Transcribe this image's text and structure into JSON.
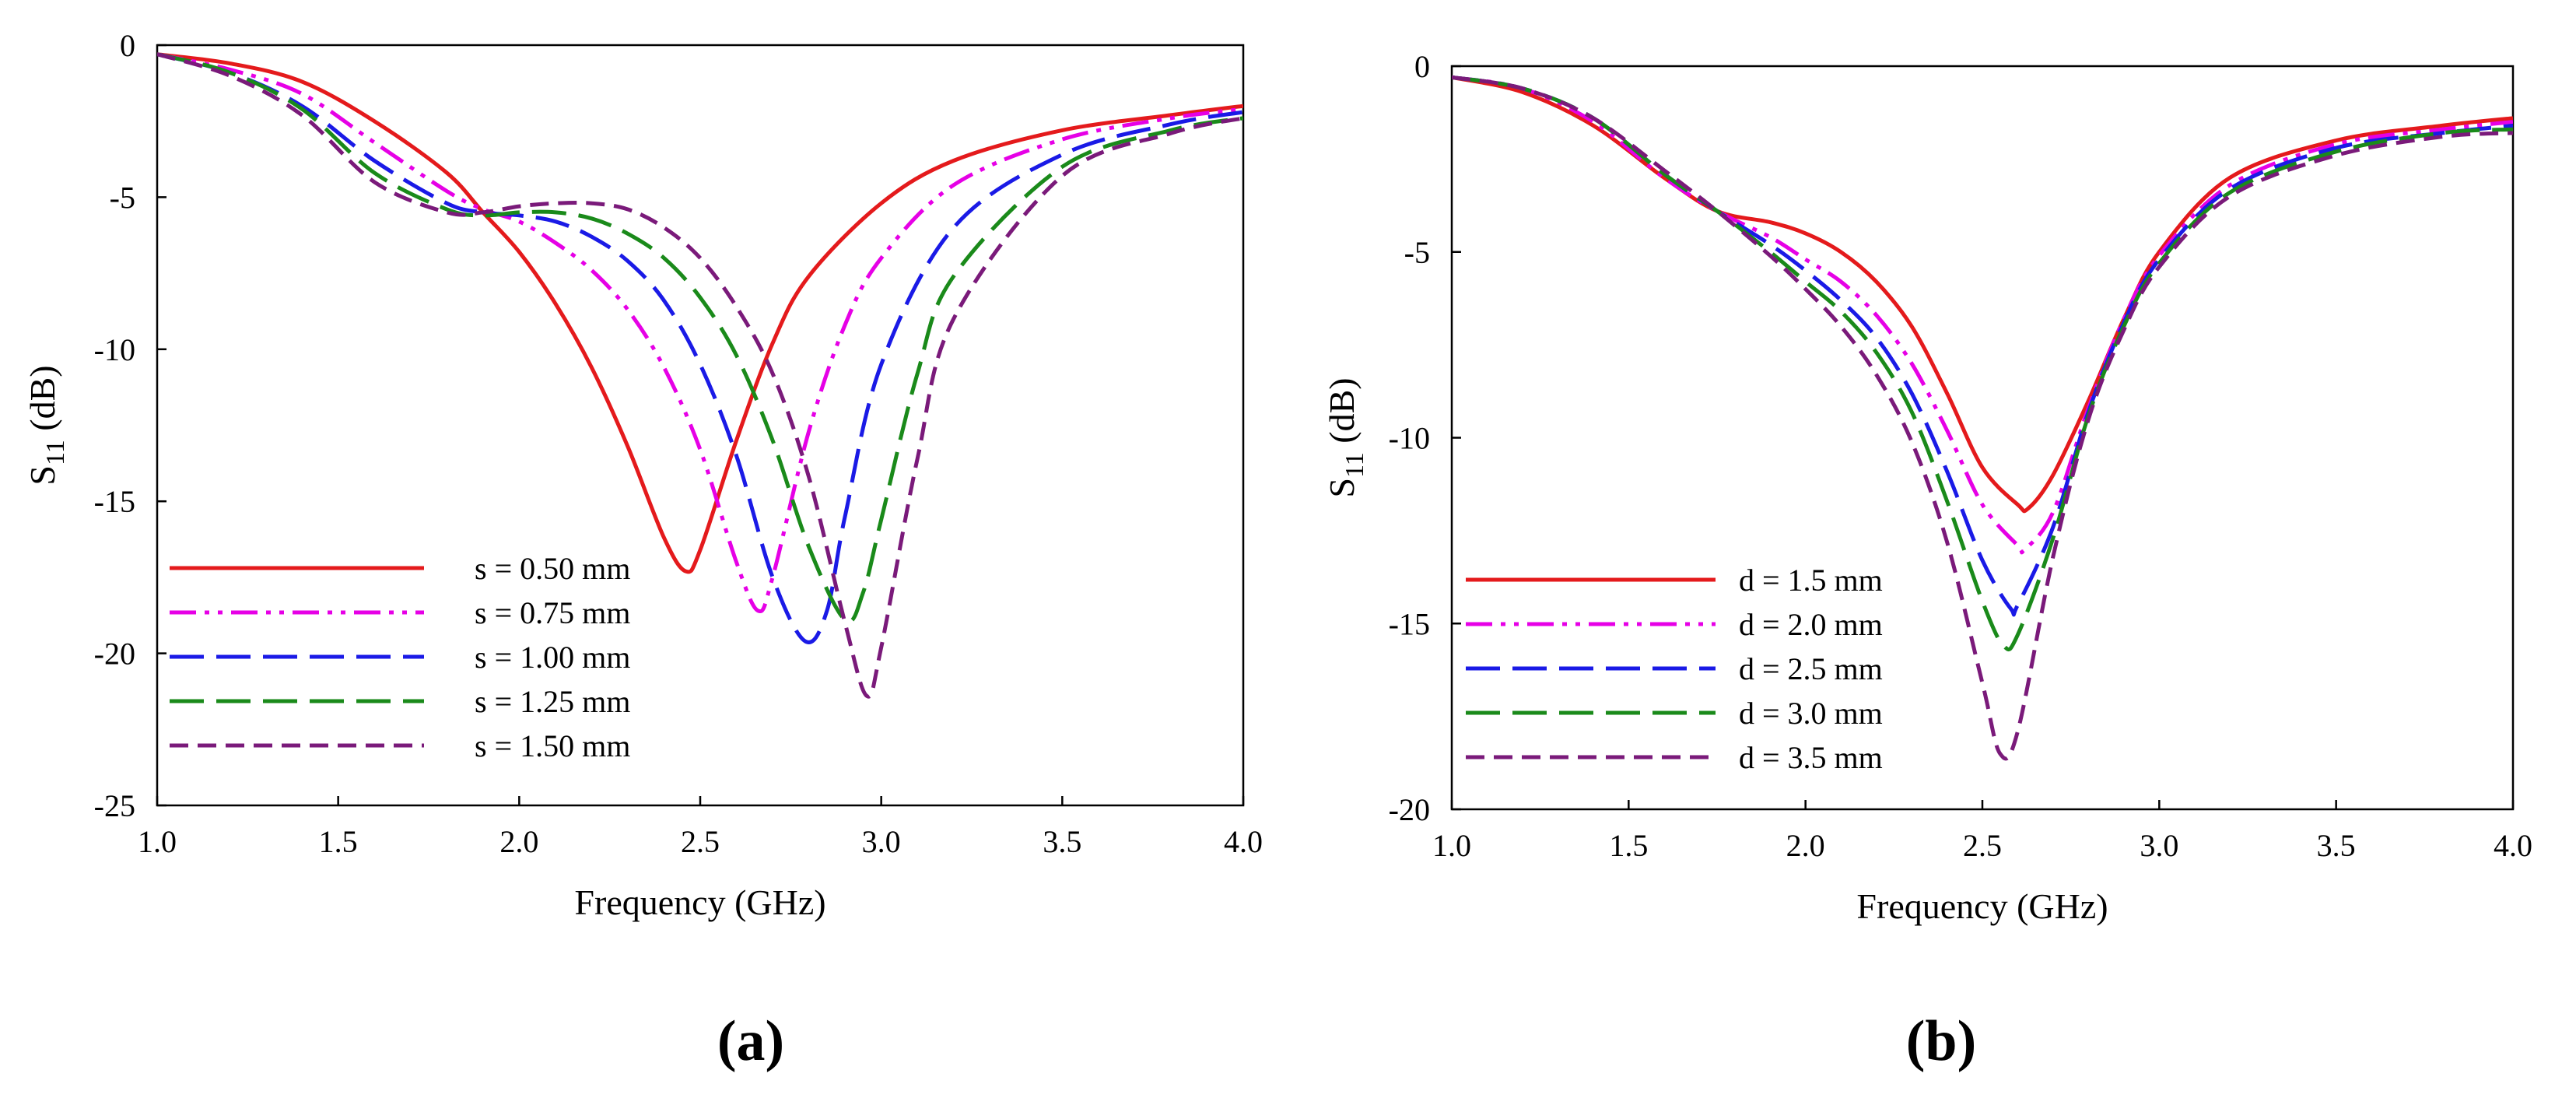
{
  "chart_data": [
    {
      "type": "line",
      "panel_label": "(a)",
      "xlabel": "Frequency (GHz)",
      "ylabel_main": "S",
      "ylabel_sub": "11",
      "ylabel_unit": " (dB)",
      "xlim": [
        1.0,
        4.0
      ],
      "ylim": [
        -25,
        0
      ],
      "xticks": [
        "1.0",
        "1.5",
        "2.0",
        "2.5",
        "3.0",
        "3.5",
        "4.0"
      ],
      "yticks": [
        "0",
        "-5",
        "-10",
        "-15",
        "-20",
        "-25"
      ],
      "xtick_values": [
        1.0,
        1.5,
        2.0,
        2.5,
        3.0,
        3.5,
        4.0
      ],
      "ytick_values": [
        0,
        -5,
        -10,
        -15,
        -20,
        -25
      ],
      "legend_position": "lower-left",
      "series": [
        {
          "name": "s = 0.50 mm",
          "color": "#e41a1c",
          "dash": "solid",
          "x": [
            1.0,
            1.2,
            1.4,
            1.6,
            1.8,
            1.9,
            2.0,
            2.1,
            2.2,
            2.3,
            2.4,
            2.46,
            2.5,
            2.6,
            2.7,
            2.8,
            3.0,
            3.2,
            3.5,
            3.8,
            4.0
          ],
          "y": [
            -0.3,
            -0.6,
            -1.2,
            -2.5,
            -4.2,
            -5.5,
            -6.8,
            -8.5,
            -10.6,
            -13.2,
            -16.2,
            -17.3,
            -16.6,
            -13.0,
            -9.8,
            -7.6,
            -5.2,
            -3.8,
            -2.8,
            -2.3,
            -2.0
          ]
        },
        {
          "name": "s = 0.75 mm",
          "color": "#e600e6",
          "dash": "dashdotdot",
          "x": [
            1.0,
            1.2,
            1.4,
            1.6,
            1.8,
            1.9,
            2.0,
            2.1,
            2.2,
            2.3,
            2.4,
            2.5,
            2.6,
            2.66,
            2.7,
            2.8,
            2.9,
            3.0,
            3.2,
            3.5,
            3.8,
            4.0
          ],
          "y": [
            -0.3,
            -0.8,
            -1.6,
            -3.2,
            -4.8,
            -5.4,
            -5.8,
            -6.5,
            -7.4,
            -8.7,
            -10.6,
            -13.3,
            -17.0,
            -18.6,
            -17.5,
            -12.7,
            -9.2,
            -7.0,
            -4.6,
            -3.1,
            -2.4,
            -2.1
          ]
        },
        {
          "name": "s = 1.00 mm",
          "color": "#1a1ae6",
          "dash": "longdash",
          "x": [
            1.0,
            1.2,
            1.4,
            1.6,
            1.8,
            1.9,
            2.0,
            2.1,
            2.2,
            2.3,
            2.4,
            2.5,
            2.6,
            2.7,
            2.79,
            2.85,
            2.9,
            3.0,
            3.2,
            3.5,
            3.8,
            4.0
          ],
          "y": [
            -0.3,
            -0.9,
            -2.0,
            -3.8,
            -5.2,
            -5.5,
            -5.6,
            -5.8,
            -6.3,
            -7.1,
            -8.4,
            -10.5,
            -13.5,
            -17.5,
            -19.6,
            -18.6,
            -15.5,
            -10.5,
            -6.0,
            -3.6,
            -2.6,
            -2.2
          ]
        },
        {
          "name": "s = 1.25 mm",
          "color": "#1a8a1a",
          "dash": "longdash",
          "x": [
            1.0,
            1.2,
            1.4,
            1.6,
            1.8,
            1.9,
            2.0,
            2.1,
            2.2,
            2.3,
            2.4,
            2.5,
            2.6,
            2.7,
            2.8,
            2.9,
            2.95,
            3.0,
            3.1,
            3.2,
            3.5,
            3.8,
            4.0
          ],
          "y": [
            -0.3,
            -0.9,
            -2.1,
            -4.2,
            -5.4,
            -5.6,
            -5.5,
            -5.5,
            -5.7,
            -6.2,
            -7.0,
            -8.3,
            -10.2,
            -13.0,
            -16.5,
            -18.9,
            -18.0,
            -15.6,
            -10.8,
            -7.6,
            -4.0,
            -2.8,
            -2.4
          ]
        },
        {
          "name": "s = 1.50 mm",
          "color": "#7a1a7a",
          "dash": "dash",
          "x": [
            1.0,
            1.2,
            1.4,
            1.6,
            1.8,
            1.9,
            2.0,
            2.1,
            2.2,
            2.3,
            2.4,
            2.5,
            2.6,
            2.7,
            2.8,
            2.9,
            2.96,
            3.0,
            3.1,
            3.2,
            3.5,
            3.8,
            4.0
          ],
          "y": [
            -0.3,
            -1.0,
            -2.3,
            -4.5,
            -5.5,
            -5.5,
            -5.3,
            -5.2,
            -5.2,
            -5.4,
            -6.0,
            -7.0,
            -8.6,
            -10.8,
            -14.2,
            -19.0,
            -21.4,
            -19.8,
            -13.6,
            -9.0,
            -4.3,
            -2.9,
            -2.4
          ]
        }
      ]
    },
    {
      "type": "line",
      "panel_label": "(b)",
      "xlabel": "Frequency (GHz)",
      "ylabel_main": "S",
      "ylabel_sub": "11",
      "ylabel_unit": " (dB)",
      "xlim": [
        1.0,
        4.0
      ],
      "ylim": [
        -20,
        0
      ],
      "xticks": [
        "1.0",
        "1.5",
        "2.0",
        "2.5",
        "3.0",
        "3.5",
        "4.0"
      ],
      "yticks": [
        "0",
        "-5",
        "-10",
        "-15",
        "-20"
      ],
      "xtick_values": [
        1.0,
        1.5,
        2.0,
        2.5,
        3.0,
        3.5,
        4.0
      ],
      "ytick_values": [
        0,
        -5,
        -10,
        -15,
        -20
      ],
      "legend_position": "lower-left",
      "series": [
        {
          "name": "d = 1.5 mm",
          "color": "#e41a1c",
          "dash": "solid",
          "x": [
            1.0,
            1.2,
            1.4,
            1.6,
            1.75,
            1.9,
            2.0,
            2.1,
            2.2,
            2.3,
            2.4,
            2.5,
            2.6,
            2.63,
            2.7,
            2.8,
            2.9,
            3.0,
            3.2,
            3.5,
            3.8,
            4.0
          ],
          "y": [
            -0.3,
            -0.7,
            -1.6,
            -3.0,
            -3.9,
            -4.2,
            -4.5,
            -5.0,
            -5.8,
            -7.0,
            -8.8,
            -10.8,
            -11.8,
            -11.9,
            -11.0,
            -9.0,
            -6.8,
            -5.0,
            -3.0,
            -2.0,
            -1.6,
            -1.4
          ]
        },
        {
          "name": "d = 2.0 mm",
          "color": "#e600e6",
          "dash": "dashdotdot",
          "x": [
            1.0,
            1.2,
            1.4,
            1.6,
            1.75,
            1.9,
            2.0,
            2.1,
            2.2,
            2.3,
            2.4,
            2.5,
            2.6,
            2.62,
            2.7,
            2.8,
            2.9,
            3.0,
            3.2,
            3.5,
            3.8,
            4.0
          ],
          "y": [
            -0.3,
            -0.6,
            -1.5,
            -3.0,
            -3.9,
            -4.6,
            -5.2,
            -5.8,
            -6.7,
            -8.0,
            -9.8,
            -11.8,
            -12.9,
            -13.0,
            -12.0,
            -9.2,
            -6.8,
            -5.1,
            -3.2,
            -2.1,
            -1.7,
            -1.5
          ]
        },
        {
          "name": "d = 2.5 mm",
          "color": "#1a1ae6",
          "dash": "longdash",
          "x": [
            1.0,
            1.2,
            1.4,
            1.6,
            1.75,
            1.9,
            2.0,
            2.1,
            2.2,
            2.3,
            2.4,
            2.5,
            2.58,
            2.6,
            2.7,
            2.8,
            2.9,
            3.0,
            3.2,
            3.5,
            3.8,
            4.0
          ],
          "y": [
            -0.3,
            -0.6,
            -1.4,
            -2.9,
            -3.9,
            -4.8,
            -5.5,
            -6.3,
            -7.3,
            -8.8,
            -10.9,
            -13.3,
            -14.6,
            -14.5,
            -12.4,
            -9.3,
            -6.9,
            -5.2,
            -3.3,
            -2.2,
            -1.8,
            -1.6
          ]
        },
        {
          "name": "d = 3.0 mm",
          "color": "#1a8a1a",
          "dash": "longdash",
          "x": [
            1.0,
            1.2,
            1.4,
            1.6,
            1.75,
            1.9,
            2.0,
            2.1,
            2.2,
            2.3,
            2.4,
            2.5,
            2.56,
            2.6,
            2.7,
            2.8,
            2.9,
            3.0,
            3.2,
            3.5,
            3.8,
            4.0
          ],
          "y": [
            -0.3,
            -0.6,
            -1.4,
            -2.9,
            -3.9,
            -5.0,
            -5.8,
            -6.6,
            -7.7,
            -9.3,
            -11.7,
            -14.4,
            -15.6,
            -15.3,
            -12.7,
            -9.4,
            -7.0,
            -5.3,
            -3.4,
            -2.3,
            -1.8,
            -1.7
          ]
        },
        {
          "name": "d = 3.5 mm",
          "color": "#7a1a7a",
          "dash": "dash",
          "x": [
            1.0,
            1.2,
            1.4,
            1.6,
            1.75,
            1.9,
            2.0,
            2.1,
            2.2,
            2.3,
            2.4,
            2.5,
            2.55,
            2.6,
            2.7,
            2.8,
            2.9,
            3.0,
            3.2,
            3.5,
            3.8,
            4.0
          ],
          "y": [
            -0.3,
            -0.6,
            -1.4,
            -2.8,
            -3.9,
            -5.1,
            -6.0,
            -7.0,
            -8.3,
            -10.1,
            -12.8,
            -16.6,
            -18.5,
            -17.9,
            -13.2,
            -9.5,
            -7.1,
            -5.4,
            -3.5,
            -2.4,
            -1.9,
            -1.8
          ]
        }
      ]
    }
  ]
}
